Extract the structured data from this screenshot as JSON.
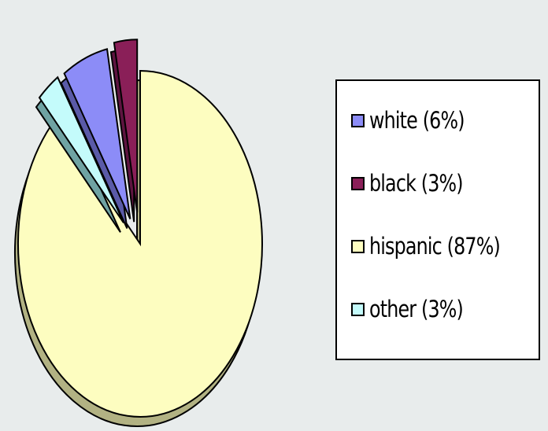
{
  "chart_data": {
    "type": "pie",
    "exploded": true,
    "three_d": true,
    "categories": [
      "white",
      "black",
      "hispanic",
      "other"
    ],
    "values": [
      6,
      3,
      87,
      3
    ],
    "colors": [
      "#8c8cf7",
      "#8a1f58",
      "#fdfdc0",
      "#c4fbfb"
    ],
    "side_colors": [
      "#5a5aa8",
      "#5e1440",
      "#b2b283",
      "#6fa3a3"
    ],
    "legend": {
      "placement": "right",
      "entries": [
        {
          "label": "white (6%)",
          "color": "#8c8cf7"
        },
        {
          "label": "black (3%)",
          "color": "#8a1f58"
        },
        {
          "label": "hispanic (87%)",
          "color": "#fdfdc0"
        },
        {
          "label": "other (3%)",
          "color": "#c4fbfb"
        }
      ]
    },
    "title": "",
    "background": "#e8ecec"
  }
}
